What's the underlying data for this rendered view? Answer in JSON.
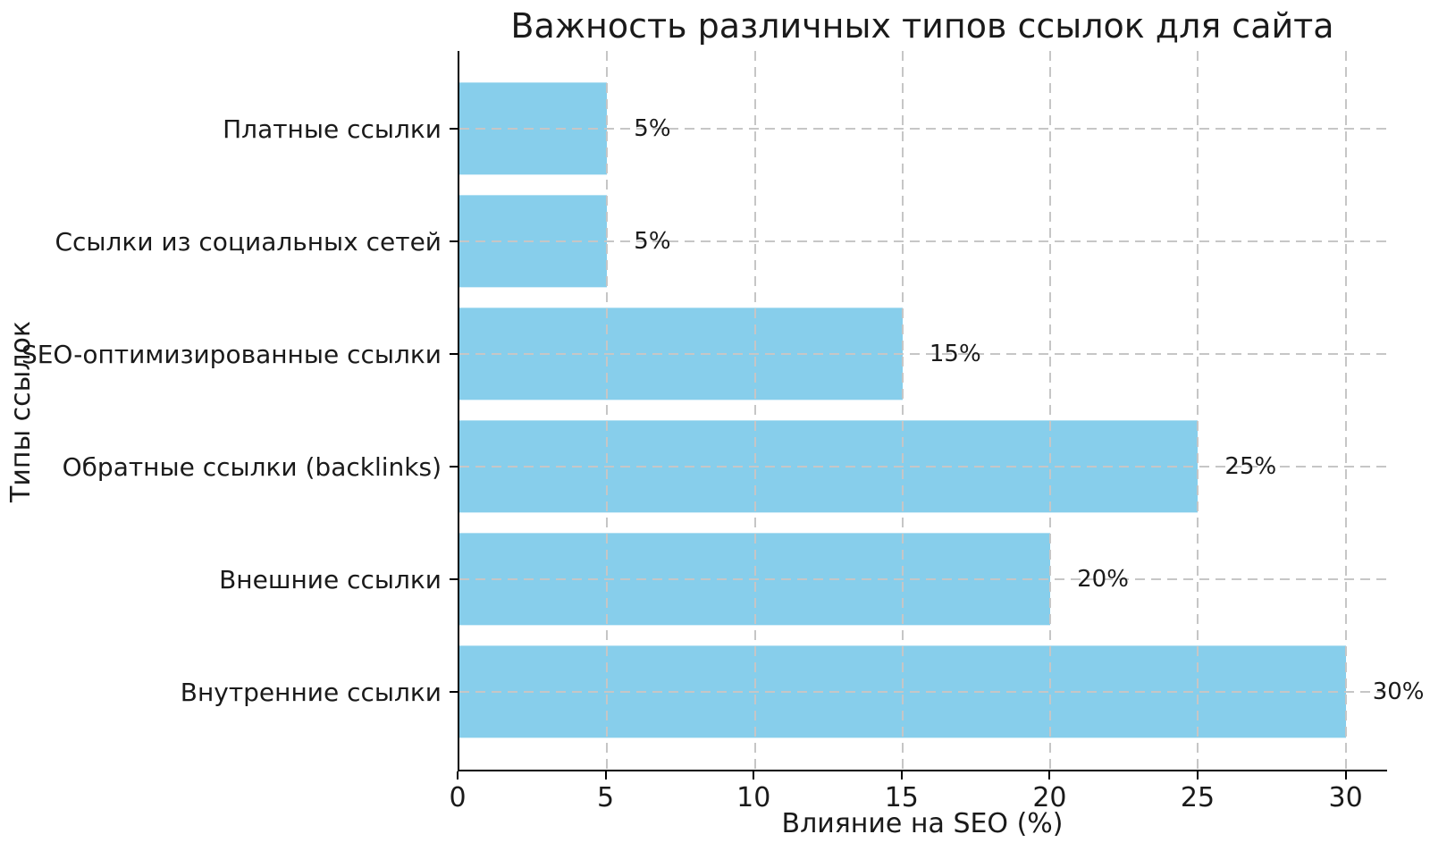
{
  "chart_data": {
    "type": "bar",
    "orientation": "horizontal",
    "title": "Важность различных типов ссылок для сайта",
    "xlabel": "Влияние на SEO (%)",
    "ylabel": "Типы ссылок",
    "categories": [
      "Платные ссылки",
      "Ссылки из социальных сетей",
      "SEO-оптимизированные ссылки",
      "Обратные ссылки (backlinks)",
      "Внешние ссылки",
      "Внутренние ссылки"
    ],
    "values": [
      5,
      5,
      15,
      25,
      20,
      30
    ],
    "value_labels": [
      "5%",
      "5%",
      "15%",
      "25%",
      "20%",
      "30%"
    ],
    "x_ticks": [
      0,
      5,
      10,
      15,
      20,
      25,
      30
    ],
    "xlim": [
      0,
      31.4
    ],
    "bar_color": "#87CEEB",
    "grid": true,
    "grid_style": "dashed",
    "grid_color": "#c6c6c6",
    "axis_color": "#000000",
    "legend_position": "none",
    "background_color": "#ffffff"
  }
}
